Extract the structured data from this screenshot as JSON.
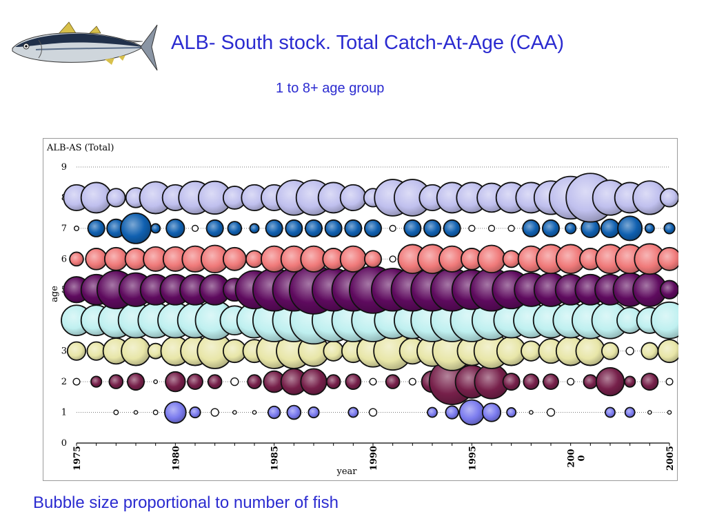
{
  "slide": {
    "title": "ALB- South stock. Total Catch-At-Age (CAA)",
    "subtitle": "1 to 8+  age group",
    "caption": "Bubble size proportional to number of fish",
    "text_color": "#2b2bd0",
    "illustration": "albacore-tuna-image"
  },
  "chart_data": {
    "type": "bubble",
    "title": "ALB-AS (Total)",
    "xlabel": "year",
    "ylabel": "age",
    "xlim": [
      1975,
      2005
    ],
    "ylim": [
      0,
      9
    ],
    "y_ticks": [
      "0",
      "1",
      "2",
      "3",
      "4",
      "5",
      "6",
      "7",
      "8",
      "9"
    ],
    "x_ticks": [
      {
        "value": 1975,
        "lines": [
          "1975"
        ]
      },
      {
        "value": 1980,
        "lines": [
          "1980"
        ]
      },
      {
        "value": 1985,
        "lines": [
          "1985"
        ]
      },
      {
        "value": 1990,
        "lines": [
          "1990"
        ]
      },
      {
        "value": 1995,
        "lines": [
          "1995"
        ]
      },
      {
        "value": 2000,
        "lines": [
          "200",
          "0"
        ]
      },
      {
        "value": 2005,
        "lines": [
          "2005"
        ]
      }
    ],
    "grid": "horizontal dotted",
    "years": [
      1975,
      1976,
      1977,
      1978,
      1979,
      1980,
      1981,
      1982,
      1983,
      1984,
      1985,
      1986,
      1987,
      1988,
      1989,
      1990,
      1991,
      1992,
      1993,
      1994,
      1995,
      1996,
      1997,
      1998,
      1999,
      2000,
      2001,
      2002,
      2003,
      2004,
      2005
    ],
    "series": [
      {
        "age": 1,
        "color": "#7b7bee",
        "relative_size": [
          0,
          0,
          0.15,
          0.12,
          0.15,
          0.7,
          0.35,
          0.25,
          0.12,
          0.12,
          0.4,
          0.45,
          0.35,
          0,
          0.32,
          0.25,
          0,
          0,
          0.32,
          0.42,
          0.82,
          0.6,
          0.3,
          0.12,
          0.25,
          0,
          0,
          0.32,
          0.32,
          0.12,
          0.12
        ]
      },
      {
        "age": 2,
        "color": "#76204a",
        "relative_size": [
          0.22,
          0.35,
          0.45,
          0.55,
          0.12,
          0.65,
          0.5,
          0.45,
          0.25,
          0.45,
          0.7,
          0.85,
          0.85,
          0.45,
          0.5,
          0.22,
          0.45,
          0.22,
          0.7,
          1.5,
          1.08,
          1.12,
          0.55,
          0.5,
          0.5,
          0.22,
          0.45,
          0.92,
          0.35,
          0.55,
          0.22
        ]
      },
      {
        "age": 3,
        "color": "#e8e6a8",
        "relative_size": [
          0.6,
          0.6,
          0.85,
          0.95,
          0.5,
          0.95,
          0.95,
          1.15,
          0.75,
          0.75,
          1.15,
          1.15,
          1.0,
          0.65,
          0.75,
          1.05,
          1.25,
          0.85,
          1.0,
          1.28,
          0.95,
          1.15,
          0.95,
          0.65,
          0.8,
          0.95,
          0.95,
          0.55,
          0.25,
          0.55,
          0.75
        ]
      },
      {
        "age": 4,
        "color": "#bff0f0",
        "relative_size": [
          1.0,
          1.0,
          1.15,
          1.15,
          1.15,
          1.15,
          1.15,
          1.28,
          0.95,
          1.15,
          1.4,
          1.4,
          1.55,
          1.4,
          1.4,
          1.4,
          1.2,
          1.2,
          1.4,
          1.4,
          1.4,
          1.28,
          1.15,
          1.15,
          1.15,
          1.15,
          1.2,
          1.2,
          0.85,
          0.85,
          1.2
        ]
      },
      {
        "age": 5,
        "color": "#5e0a5e",
        "relative_size": [
          0.85,
          1.0,
          1.25,
          1.1,
          1.0,
          1.0,
          1.0,
          1.0,
          0.75,
          1.25,
          1.4,
          1.4,
          1.6,
          1.4,
          1.4,
          1.55,
          1.4,
          1.4,
          1.4,
          1.4,
          1.3,
          1.4,
          1.25,
          1.1,
          1.1,
          1.0,
          1.0,
          1.0,
          1.1,
          1.1,
          0.6
        ]
      },
      {
        "age": 6,
        "color": "#f07a7a",
        "relative_size": [
          0.45,
          0.7,
          0.75,
          0.7,
          0.8,
          0.8,
          0.85,
          0.9,
          0.75,
          0.55,
          0.85,
          0.85,
          0.85,
          0.7,
          0.85,
          0.55,
          0.2,
          0.95,
          0.95,
          0.85,
          0.7,
          0.9,
          0.55,
          0.85,
          0.95,
          0.95,
          0.7,
          0.95,
          0.95,
          1.0,
          0.75
        ]
      },
      {
        "age": 7,
        "color": "#1060b0",
        "relative_size": [
          0.15,
          0.55,
          0.6,
          1.0,
          0.3,
          0.6,
          0.2,
          0.55,
          0.45,
          0.3,
          0.55,
          0.55,
          0.55,
          0.55,
          0.55,
          0.55,
          0.2,
          0.55,
          0.55,
          0.55,
          0.2,
          0.2,
          0.2,
          0.55,
          0.55,
          0.35,
          0.6,
          0.6,
          0.8,
          0.3,
          0.35
        ]
      },
      {
        "age": 8,
        "color": "#c0c0ee",
        "relative_size": [
          0.85,
          1.0,
          0.6,
          0.65,
          1.05,
          0.85,
          1.08,
          1.08,
          0.75,
          0.85,
          0.85,
          1.15,
          1.15,
          1.0,
          0.85,
          0.6,
          1.2,
          1.2,
          0.85,
          1.0,
          1.0,
          0.95,
          1.0,
          1.0,
          1.1,
          1.4,
          1.6,
          1.15,
          1.0,
          1.1,
          0.6
        ]
      }
    ]
  }
}
